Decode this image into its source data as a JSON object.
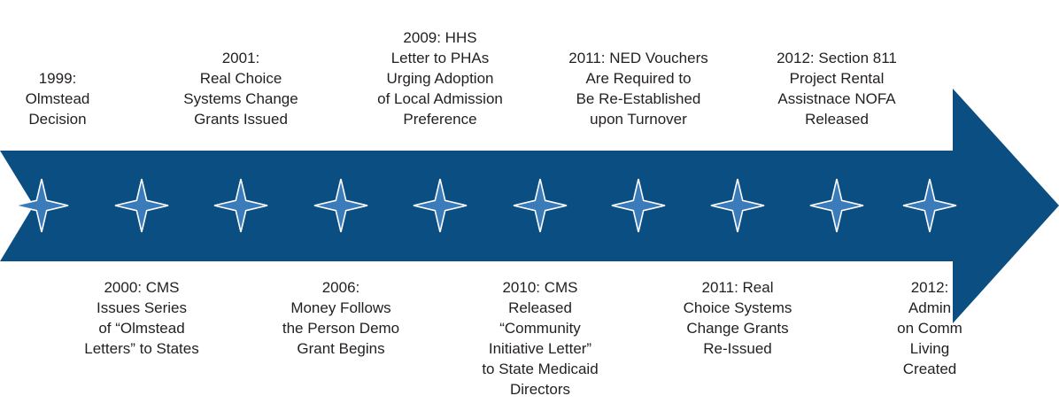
{
  "events": [
    {
      "lines": [
        "1999:",
        "Olmstead",
        "Decision"
      ]
    },
    {
      "lines": [
        "2000: CMS",
        "Issues Series",
        "of “Olmstead",
        "Letters” to States"
      ]
    },
    {
      "lines": [
        "2001:",
        "Real Choice",
        "Systems Change",
        "Grants Issued"
      ]
    },
    {
      "lines": [
        "2006:",
        "Money Follows",
        "the Person Demo",
        "Grant Begins"
      ]
    },
    {
      "lines": [
        "2009: HHS",
        "Letter to PHAs",
        "Urging Adoption",
        "of Local Admission",
        "Preference"
      ]
    },
    {
      "lines": [
        "2010: CMS",
        "Released",
        "“Community",
        "Initiative Letter”",
        "to State Medicaid",
        "Directors"
      ]
    },
    {
      "lines": [
        "2011: NED Vouchers",
        "Are Required to",
        "Be Re-Established",
        "upon Turnover"
      ]
    },
    {
      "lines": [
        "2011: Real",
        "Choice Systems",
        "Change Grants",
        "Re-Issued"
      ]
    },
    {
      "lines": [
        "2012: Section 811",
        "Project Rental",
        "Assistnace NOFA",
        "Released"
      ]
    },
    {
      "lines": [
        "2012:",
        "Admin",
        "on Comm",
        "Living",
        "Created"
      ]
    }
  ]
}
